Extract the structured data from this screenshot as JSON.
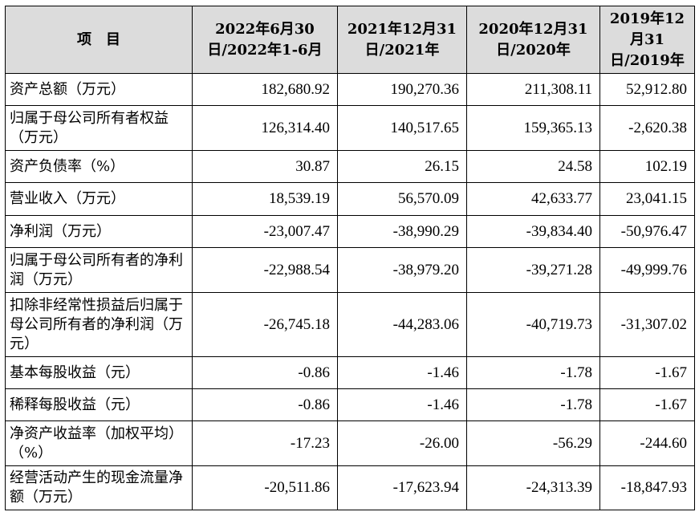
{
  "table": {
    "headers": [
      "项目",
      "2022年6月30日/2022年1-6月",
      "2021年12月31日/2021年",
      "2020年12月31日/2020年",
      "2019年12月31日/2019年"
    ],
    "rows": [
      {
        "label": "资产总额（万元）",
        "values": [
          "182,680.92",
          "190,270.36",
          "211,308.11",
          "52,912.80"
        ]
      },
      {
        "label": "归属于母公司所有者权益（万元）",
        "values": [
          "126,314.40",
          "140,517.65",
          "159,365.13",
          "-2,620.38"
        ]
      },
      {
        "label": "资产负债率（%）",
        "values": [
          "30.87",
          "26.15",
          "24.58",
          "102.19"
        ]
      },
      {
        "label": "营业收入（万元）",
        "values": [
          "18,539.19",
          "56,570.09",
          "42,633.77",
          "23,041.15"
        ]
      },
      {
        "label": "净利润（万元）",
        "values": [
          "-23,007.47",
          "-38,990.29",
          "-39,834.40",
          "-50,976.47"
        ]
      },
      {
        "label": "归属于母公司所有者的净利润（万元）",
        "values": [
          "-22,988.54",
          "-38,979.20",
          "-39,271.28",
          "-49,999.76"
        ]
      },
      {
        "label": "扣除非经常性损益后归属于母公司所有者的净利润（万元）",
        "values": [
          "-26,745.18",
          "-44,283.06",
          "-40,719.73",
          "-31,307.02"
        ]
      },
      {
        "label": "基本每股收益（元）",
        "values": [
          "-0.86",
          "-1.46",
          "-1.78",
          "-1.67"
        ]
      },
      {
        "label": "稀释每股收益（元）",
        "values": [
          "-0.86",
          "-1.46",
          "-1.78",
          "-1.67"
        ]
      },
      {
        "label": "净资产收益率（加权平均）（%）",
        "values": [
          "-17.23",
          "-26.00",
          "-56.29",
          "-244.60"
        ]
      },
      {
        "label": "经营活动产生的现金流量净额（万元）",
        "values": [
          "-20,511.86",
          "-17,623.94",
          "-24,313.39",
          "-18,847.93"
        ]
      }
    ]
  }
}
